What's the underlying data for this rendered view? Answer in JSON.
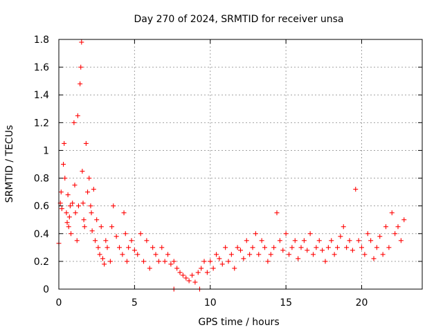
{
  "chart_data": {
    "type": "scatter",
    "title": "Day 270 of 2024, SRMTID for receiver unsa",
    "xlabel": "GPS time / hours",
    "ylabel": "SRMTID / TECUs",
    "xlim": [
      0,
      24
    ],
    "ylim": [
      0,
      1.8
    ],
    "xticks": [
      0,
      5,
      10,
      15,
      20
    ],
    "xtick_labels": [
      "0",
      "5",
      "10",
      "15",
      "20"
    ],
    "yticks": [
      0,
      0.2,
      0.4,
      0.6,
      0.8,
      1.0,
      1.2,
      1.4,
      1.6,
      1.8
    ],
    "ytick_labels": [
      "0",
      "0.2",
      "0.4",
      "0.6",
      "0.8",
      "1",
      "1.2",
      "1.4",
      "1.6",
      "1.8"
    ],
    "grid": true,
    "marker": "plus",
    "color": "#ff0000",
    "series": [
      {
        "name": "SRMTID",
        "x": [
          0.0,
          0.1,
          0.15,
          0.2,
          0.3,
          0.35,
          0.4,
          0.5,
          0.55,
          0.6,
          0.65,
          0.7,
          0.75,
          0.8,
          0.9,
          1.0,
          1.05,
          1.1,
          1.2,
          1.25,
          1.3,
          1.4,
          1.45,
          1.5,
          1.55,
          1.6,
          1.65,
          1.7,
          1.8,
          1.9,
          2.0,
          2.1,
          2.15,
          2.2,
          2.3,
          2.4,
          2.5,
          2.6,
          2.7,
          2.8,
          2.9,
          3.0,
          3.1,
          3.2,
          3.4,
          3.5,
          3.6,
          3.8,
          4.0,
          4.2,
          4.3,
          4.4,
          4.5,
          4.6,
          4.8,
          5.0,
          5.2,
          5.4,
          5.6,
          5.8,
          6.0,
          6.2,
          6.4,
          6.6,
          6.8,
          7.0,
          7.2,
          7.4,
          7.6,
          7.8,
          8.0,
          8.2,
          8.4,
          8.6,
          8.8,
          9.0,
          9.2,
          9.4,
          9.6,
          9.8,
          10.0,
          10.2,
          10.4,
          10.6,
          10.8,
          11.0,
          11.2,
          11.4,
          11.6,
          11.8,
          12.0,
          12.2,
          12.4,
          12.6,
          12.8,
          13.0,
          13.2,
          13.4,
          13.6,
          13.8,
          14.0,
          14.2,
          14.4,
          14.6,
          14.8,
          15.0,
          15.2,
          15.4,
          15.6,
          15.8,
          16.0,
          16.2,
          16.4,
          16.6,
          16.8,
          17.0,
          17.2,
          17.4,
          17.6,
          17.8,
          18.0,
          18.2,
          18.4,
          18.6,
          18.8,
          19.0,
          19.2,
          19.4,
          19.6,
          19.8,
          20.0,
          20.2,
          20.4,
          20.6,
          20.8,
          21.0,
          21.2,
          21.4,
          21.6,
          21.8,
          22.0,
          22.2,
          22.4,
          22.6,
          22.8,
          7.6,
          9.3
        ],
        "y": [
          0.33,
          0.62,
          0.7,
          0.58,
          0.9,
          1.05,
          0.8,
          0.55,
          0.48,
          0.68,
          0.45,
          0.52,
          0.6,
          0.4,
          0.62,
          1.2,
          0.75,
          0.55,
          0.35,
          1.25,
          0.6,
          1.48,
          1.6,
          1.78,
          0.85,
          0.62,
          0.5,
          0.45,
          1.05,
          0.7,
          0.8,
          0.6,
          0.55,
          0.42,
          0.72,
          0.35,
          0.5,
          0.3,
          0.25,
          0.45,
          0.22,
          0.18,
          0.35,
          0.3,
          0.2,
          0.45,
          0.6,
          0.38,
          0.3,
          0.25,
          0.55,
          0.4,
          0.2,
          0.3,
          0.35,
          0.28,
          0.25,
          0.4,
          0.2,
          0.35,
          0.15,
          0.3,
          0.25,
          0.2,
          0.3,
          0.2,
          0.25,
          0.18,
          0.2,
          0.15,
          0.12,
          0.1,
          0.08,
          0.06,
          0.1,
          0.05,
          0.12,
          0.15,
          0.2,
          0.12,
          0.2,
          0.15,
          0.25,
          0.22,
          0.18,
          0.3,
          0.2,
          0.25,
          0.15,
          0.3,
          0.28,
          0.22,
          0.35,
          0.25,
          0.3,
          0.4,
          0.25,
          0.35,
          0.3,
          0.2,
          0.25,
          0.3,
          0.55,
          0.35,
          0.28,
          0.4,
          0.25,
          0.3,
          0.35,
          0.22,
          0.3,
          0.35,
          0.28,
          0.4,
          0.25,
          0.3,
          0.35,
          0.28,
          0.2,
          0.3,
          0.35,
          0.25,
          0.3,
          0.38,
          0.45,
          0.3,
          0.35,
          0.28,
          0.72,
          0.35,
          0.3,
          0.25,
          0.4,
          0.35,
          0.22,
          0.3,
          0.38,
          0.25,
          0.45,
          0.3,
          0.55,
          0.4,
          0.45,
          0.35,
          0.5,
          0.0,
          0.0
        ]
      }
    ]
  }
}
